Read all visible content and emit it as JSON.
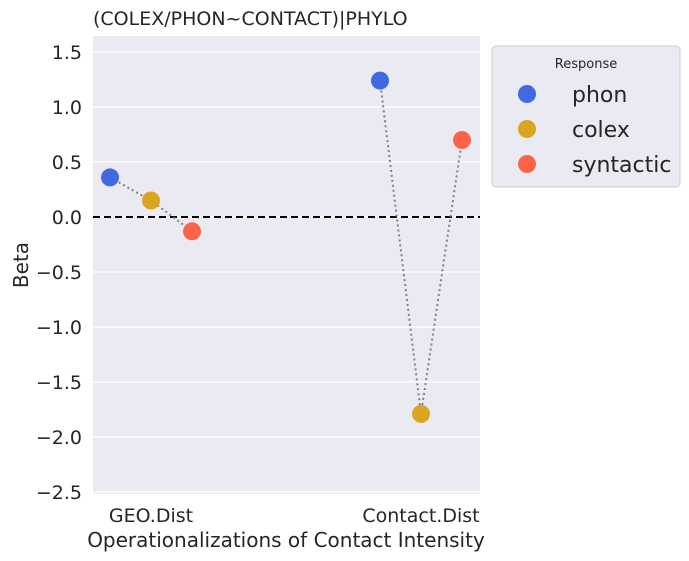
{
  "chart_data": {
    "type": "scatter",
    "title": "(COLEX/PHON~CONTACT)|PHYLO",
    "xlabel": "Operationalizations of Contact Intensity",
    "ylabel": "Beta",
    "categories": [
      "GEO.Dist",
      "Contact.Dist"
    ],
    "ylim": [
      -2.55,
      1.65
    ],
    "yticks": [
      1.5,
      1.0,
      0.5,
      0.0,
      -0.5,
      -1.0,
      -1.5,
      -2.0,
      -2.5
    ],
    "ytick_labels": [
      "1.5",
      "1.0",
      "0.5",
      "0.0",
      "−0.5",
      "−1.0",
      "−1.5",
      "−2.0",
      "−2.5"
    ],
    "reference_line": {
      "y": 0.0,
      "style": "dashed",
      "color": "#000000"
    },
    "grid": true,
    "series": [
      {
        "name": "phon",
        "color": "#4169e1",
        "values": [
          0.36,
          1.24
        ]
      },
      {
        "name": "colex",
        "color": "#daa520",
        "values": [
          0.15,
          -1.79
        ]
      },
      {
        "name": "syntactic",
        "color": "#ff6347",
        "values": [
          -0.13,
          0.7
        ]
      }
    ],
    "legend": {
      "title": "Response",
      "placement": "outside-top-right"
    },
    "connector": {
      "style": "dotted",
      "color": "#808080"
    }
  }
}
